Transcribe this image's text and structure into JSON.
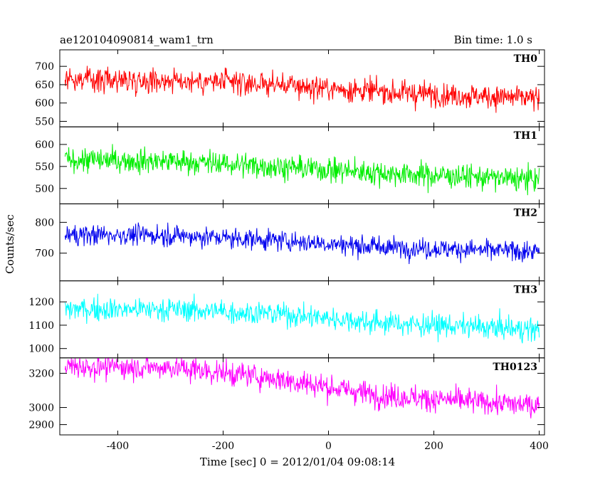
{
  "chart_data": {
    "type": "line",
    "title": "ae120104090814_wam1_trn",
    "subtitle": "Bin time: 1.0 s",
    "xlabel": "Time [sec] 0 = 2012/01/04 09:08:14",
    "ylabel": "Counts/sec",
    "xlim": [
      -510,
      410
    ],
    "x_ticks": [
      -400,
      -200,
      0,
      200,
      400
    ],
    "x": {
      "start": -500,
      "end": 400,
      "step": 1
    },
    "grid": false,
    "panels": [
      {
        "name": "TH0",
        "color": "#ff0000",
        "ylim": [
          535,
          745
        ],
        "y_ticks": [
          550,
          600,
          650,
          700
        ],
        "trend": [
          [
            -500,
            665
          ],
          [
            -300,
            662
          ],
          [
            -100,
            650
          ],
          [
            100,
            630
          ],
          [
            400,
            612
          ]
        ],
        "noise": 30
      },
      {
        "name": "TH1",
        "color": "#00ee00",
        "ylim": [
          465,
          640
        ],
        "y_ticks": [
          500,
          550,
          600
        ],
        "trend": [
          [
            -500,
            565
          ],
          [
            -300,
            562
          ],
          [
            -100,
            550
          ],
          [
            100,
            535
          ],
          [
            400,
            520
          ]
        ],
        "noise": 25
      },
      {
        "name": "TH2",
        "color": "#0000ee",
        "ylim": [
          610,
          860
        ],
        "y_ticks": [
          700,
          800
        ],
        "trend": [
          [
            -500,
            760
          ],
          [
            -300,
            758
          ],
          [
            -100,
            742
          ],
          [
            100,
            720
          ],
          [
            400,
            705
          ]
        ],
        "noise": 30
      },
      {
        "name": "TH3",
        "color": "#00ffff",
        "ylim": [
          960,
          1290
        ],
        "y_ticks": [
          1000,
          1100,
          1200
        ],
        "trend": [
          [
            -500,
            1170
          ],
          [
            -300,
            1168
          ],
          [
            -100,
            1150
          ],
          [
            100,
            1110
          ],
          [
            400,
            1080
          ]
        ],
        "noise": 45
      },
      {
        "name": "TH0123",
        "color": "#ff00ff",
        "ylim": [
          2840,
          3290
        ],
        "y_ticks": [
          2900,
          3000,
          3200
        ],
        "trend": [
          [
            -500,
            3240
          ],
          [
            -300,
            3235
          ],
          [
            -100,
            3170
          ],
          [
            100,
            3070
          ],
          [
            400,
            3010
          ]
        ],
        "noise": 65
      }
    ]
  }
}
